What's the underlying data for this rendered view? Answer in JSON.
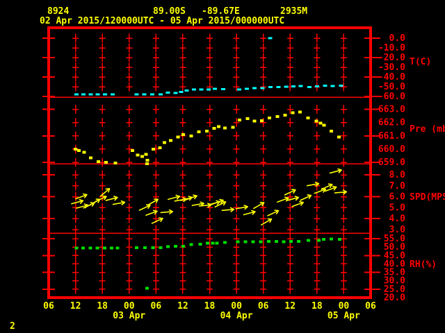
{
  "header": {
    "station_id": "8924",
    "latitude": "89.00S",
    "longitude": "-89.67E",
    "elevation": "2935M",
    "time_range": "02 Apr 2015/120000UTC - 05 Apr 2015/000000UTC"
  },
  "page_number": "2",
  "colors": {
    "background": "#000000",
    "axis_red": "#ff0000",
    "label_yellow": "#ffff00",
    "temp_series": "#00ffff",
    "pressure_series": "#ffff00",
    "wind_series": "#ffff00",
    "rh_series": "#00dd00"
  },
  "x_axis": {
    "hour_labels": [
      "06",
      "12",
      "18",
      "00",
      "06",
      "12",
      "18",
      "00",
      "06",
      "12",
      "18",
      "00",
      "06"
    ],
    "date_labels": [
      {
        "text": "03 Apr",
        "col": 3
      },
      {
        "text": "04 Apr",
        "col": 7
      },
      {
        "text": "05 Apr",
        "col": 11
      }
    ]
  },
  "chart_data": {
    "type": "scatter",
    "variant": "meteogram",
    "x_unit": "hours since 2015-04-02 12:00 UTC",
    "x_range": [
      0,
      60
    ],
    "grid": "red plus-mark grid at 6h columns",
    "legend_position": "right-axis labels",
    "panels": [
      {
        "variable": "T(C)",
        "ticks": [
          "0.0",
          "-10.0",
          "-20.0",
          "-30.0",
          "-40.0",
          "-50.0",
          "-60.0"
        ],
        "ylim": [
          -60,
          0
        ],
        "color_key": "temp_series",
        "points": [
          [
            0.2,
            -58
          ],
          [
            1.8,
            -58
          ],
          [
            3.4,
            -58
          ],
          [
            5.0,
            -58
          ],
          [
            6.6,
            -58
          ],
          [
            8.3,
            -58
          ],
          [
            13.7,
            -58
          ],
          [
            15.4,
            -58
          ],
          [
            17.2,
            -58
          ],
          [
            19.0,
            -58
          ],
          [
            20.7,
            -56
          ],
          [
            22.4,
            -56.5
          ],
          [
            23.6,
            -55.5
          ],
          [
            24.9,
            -54
          ],
          [
            26.5,
            -53
          ],
          [
            28.1,
            -53
          ],
          [
            29.8,
            -53
          ],
          [
            31.2,
            -52
          ],
          [
            33.0,
            -52.5
          ],
          [
            36.6,
            -53
          ],
          [
            38.3,
            -52
          ],
          [
            40.0,
            -51.5
          ],
          [
            41.8,
            -51.5
          ],
          [
            43.6,
            -50.5
          ],
          [
            45.4,
            -50.5
          ],
          [
            47.1,
            -50
          ],
          [
            48.7,
            -49.8
          ],
          [
            50.4,
            -49.3
          ],
          [
            52.3,
            -50.2
          ],
          [
            54.0,
            -49.5
          ],
          [
            55.8,
            -49.1
          ],
          [
            57.5,
            -49.3
          ],
          [
            59.4,
            -48.8
          ]
        ],
        "outlier_points": [
          [
            43.5,
            0.0
          ]
        ]
      },
      {
        "variable": "Pre (mb)",
        "ticks": [
          "663.0",
          "662.0",
          "661.0",
          "660.0",
          "659.0"
        ],
        "ylim": [
          659,
          663
        ],
        "color_key": "pressure_series",
        "points": [
          [
            0.0,
            660.0
          ],
          [
            0.8,
            659.9
          ],
          [
            1.9,
            659.75
          ],
          [
            3.4,
            659.35
          ],
          [
            5.1,
            659.05
          ],
          [
            6.8,
            659.0
          ],
          [
            8.9,
            658.95
          ],
          [
            12.7,
            659.9
          ],
          [
            13.9,
            659.55
          ],
          [
            14.9,
            659.45
          ],
          [
            15.8,
            659.6
          ],
          [
            16.1,
            659.15
          ],
          [
            17.4,
            660.0
          ],
          [
            18.9,
            660.1
          ],
          [
            19.9,
            660.5
          ],
          [
            21.3,
            660.65
          ],
          [
            22.9,
            660.9
          ],
          [
            24.1,
            661.1
          ],
          [
            25.9,
            661.0
          ],
          [
            27.6,
            661.3
          ],
          [
            29.4,
            661.35
          ],
          [
            31.0,
            661.55
          ],
          [
            32.0,
            661.7
          ],
          [
            33.4,
            661.6
          ],
          [
            35.2,
            661.65
          ],
          [
            36.7,
            662.2
          ],
          [
            38.5,
            662.3
          ],
          [
            40.0,
            662.1
          ],
          [
            41.7,
            662.15
          ],
          [
            43.4,
            662.35
          ],
          [
            45.2,
            662.45
          ],
          [
            46.9,
            662.55
          ],
          [
            48.6,
            662.75
          ],
          [
            50.2,
            662.8
          ],
          [
            52.0,
            662.35
          ],
          [
            53.9,
            662.1
          ],
          [
            54.8,
            661.95
          ],
          [
            55.6,
            661.8
          ],
          [
            57.2,
            661.35
          ],
          [
            58.9,
            660.9
          ]
        ],
        "outlier_points": [
          [
            16.0,
            658.9
          ]
        ]
      },
      {
        "variable": "SPD(MPS)",
        "ticks": [
          "8.0",
          "7.0",
          "6.0",
          "5.0",
          "4.0",
          "3.0"
        ],
        "ylim": [
          3,
          8
        ],
        "color_key": "wind_series",
        "arrows_format": [
          "hour",
          "speed_mps",
          "direction_deg_above_east"
        ],
        "arrows": [
          [
            0.4,
            5.5,
            15
          ],
          [
            1.3,
            6.0,
            20
          ],
          [
            1.5,
            5.1,
            15
          ],
          [
            3.0,
            5.2,
            25
          ],
          [
            4.3,
            5.5,
            30
          ],
          [
            5.7,
            5.8,
            25
          ],
          [
            6.6,
            6.4,
            40
          ],
          [
            8.1,
            5.8,
            15
          ],
          [
            9.7,
            5.4,
            10
          ],
          [
            15.5,
            5.0,
            25
          ],
          [
            17.0,
            4.5,
            20
          ],
          [
            17.3,
            5.5,
            30
          ],
          [
            18.3,
            3.8,
            25
          ],
          [
            20.4,
            4.6,
            5
          ],
          [
            22.0,
            5.9,
            15
          ],
          [
            23.5,
            5.7,
            10
          ],
          [
            24.8,
            5.8,
            15
          ],
          [
            25.9,
            5.9,
            20
          ],
          [
            27.4,
            5.3,
            10
          ],
          [
            29.0,
            5.2,
            5
          ],
          [
            31.0,
            5.4,
            15
          ],
          [
            31.8,
            5.5,
            20
          ],
          [
            32.4,
            5.3,
            25
          ],
          [
            34.1,
            4.8,
            5
          ],
          [
            37.2,
            5.0,
            10
          ],
          [
            38.9,
            4.5,
            15
          ],
          [
            41.0,
            5.2,
            30
          ],
          [
            42.7,
            3.7,
            30
          ],
          [
            44.2,
            4.5,
            25
          ],
          [
            46.4,
            5.7,
            20
          ],
          [
            48.0,
            6.4,
            25
          ],
          [
            48.6,
            5.8,
            15
          ],
          [
            49.7,
            5.3,
            20
          ],
          [
            51.5,
            5.9,
            25
          ],
          [
            53.1,
            7.1,
            10
          ],
          [
            54.7,
            6.5,
            20
          ],
          [
            56.2,
            6.9,
            25
          ],
          [
            57.1,
            6.7,
            20
          ],
          [
            58.2,
            8.3,
            15
          ],
          [
            59.3,
            6.4,
            5
          ]
        ]
      },
      {
        "variable": "RH(%)",
        "ticks": [
          "55.0",
          "50.0",
          "45.0",
          "40.0",
          "35.0",
          "30.0",
          "25.0",
          "20.0"
        ],
        "ylim": [
          20,
          55
        ],
        "color_key": "rh_series",
        "points": [
          [
            0.2,
            49.5
          ],
          [
            1.7,
            49.5
          ],
          [
            3.3,
            49.5
          ],
          [
            4.9,
            49.4
          ],
          [
            6.5,
            49.5
          ],
          [
            8.1,
            49.5
          ],
          [
            9.4,
            49.5
          ],
          [
            13.7,
            49.6
          ],
          [
            15.5,
            49.6
          ],
          [
            17.3,
            49.6
          ],
          [
            19.0,
            49.7
          ],
          [
            20.7,
            50.3
          ],
          [
            22.4,
            50.4
          ],
          [
            24.1,
            50.5
          ],
          [
            25.9,
            51.5
          ],
          [
            27.9,
            51.8
          ],
          [
            29.5,
            52.3
          ],
          [
            30.7,
            52.4
          ],
          [
            31.6,
            52.4
          ],
          [
            33.4,
            52.7
          ],
          [
            36.3,
            53.1
          ],
          [
            38.0,
            53.2
          ],
          [
            39.7,
            53.2
          ],
          [
            41.4,
            53.2
          ],
          [
            43.2,
            53.4
          ],
          [
            44.9,
            53.4
          ],
          [
            46.6,
            53.2
          ],
          [
            48.2,
            53.4
          ],
          [
            49.9,
            53.4
          ],
          [
            52.1,
            53.9
          ],
          [
            54.4,
            54.0
          ],
          [
            55.5,
            54.5
          ],
          [
            57.2,
            54.8
          ],
          [
            59.1,
            54.6
          ]
        ],
        "outlier_points": [
          [
            16.0,
            25.5
          ]
        ]
      }
    ]
  }
}
